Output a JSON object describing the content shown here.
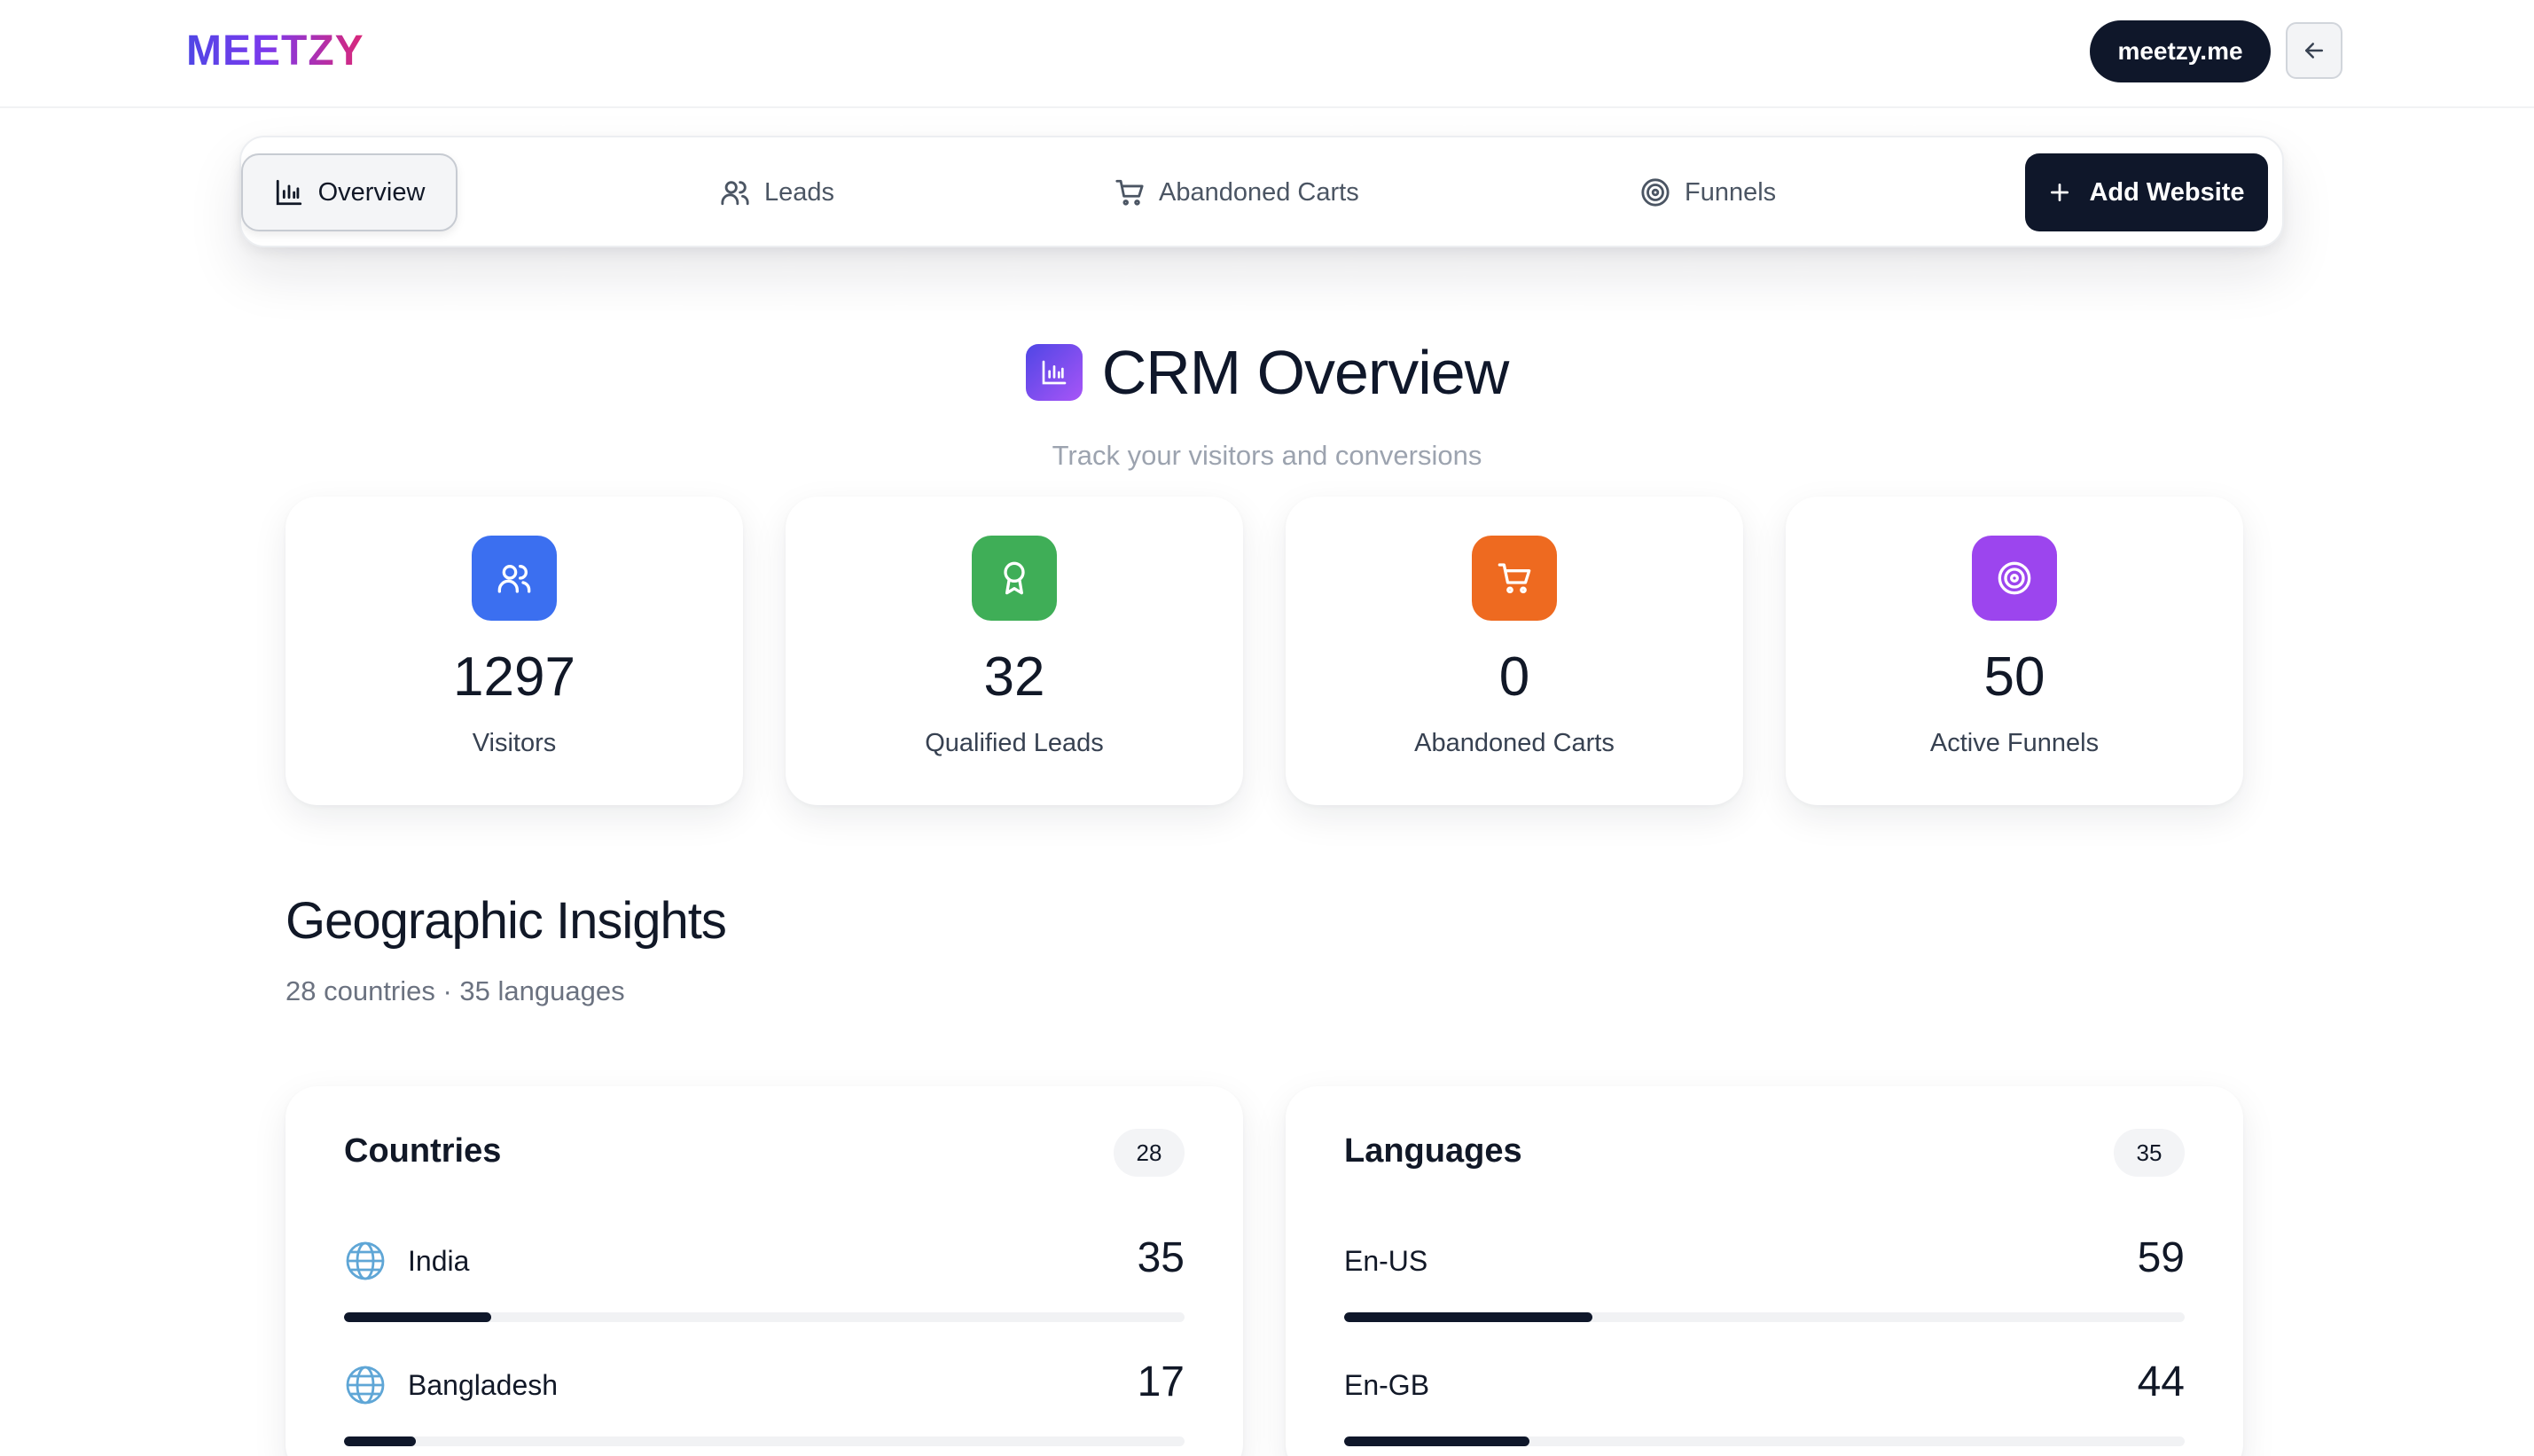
{
  "header": {
    "logo": "MEETZY",
    "domain_button": "meetzy.me",
    "back_icon": "arrow-left-icon"
  },
  "nav": {
    "items": [
      {
        "label": "Overview",
        "icon": "bar-chart-icon",
        "active": true
      },
      {
        "label": "Leads",
        "icon": "users-icon",
        "active": false
      },
      {
        "label": "Abandoned Carts",
        "icon": "cart-icon",
        "active": false
      },
      {
        "label": "Funnels",
        "icon": "target-icon",
        "active": false
      }
    ],
    "add_button": "Add Website"
  },
  "page": {
    "title": "CRM Overview",
    "subtitle": "Track your visitors and conversions"
  },
  "stats": [
    {
      "value": "1297",
      "label": "Visitors",
      "icon": "users-icon",
      "color": "#3b6ff0"
    },
    {
      "value": "32",
      "label": "Qualified Leads",
      "icon": "award-icon",
      "color": "#3fae57"
    },
    {
      "value": "0",
      "label": "Abandoned Carts",
      "icon": "cart-icon",
      "color": "#ee6a20"
    },
    {
      "value": "50",
      "label": "Active Funnels",
      "icon": "target-icon",
      "color": "#9c45ee"
    }
  ],
  "geo": {
    "title": "Geographic Insights",
    "subtitle": "28 countries · 35 languages",
    "countries": {
      "title": "Countries",
      "count": "28",
      "rows": [
        {
          "name": "India",
          "value": "35",
          "fill_fraction": 0.175
        },
        {
          "name": "Bangladesh",
          "value": "17",
          "fill_fraction": 0.085
        }
      ]
    },
    "languages": {
      "title": "Languages",
      "count": "35",
      "rows": [
        {
          "name": "En-US",
          "value": "59",
          "fill_fraction": 0.295
        },
        {
          "name": "En-GB",
          "value": "44",
          "fill_fraction": 0.22
        }
      ]
    }
  }
}
